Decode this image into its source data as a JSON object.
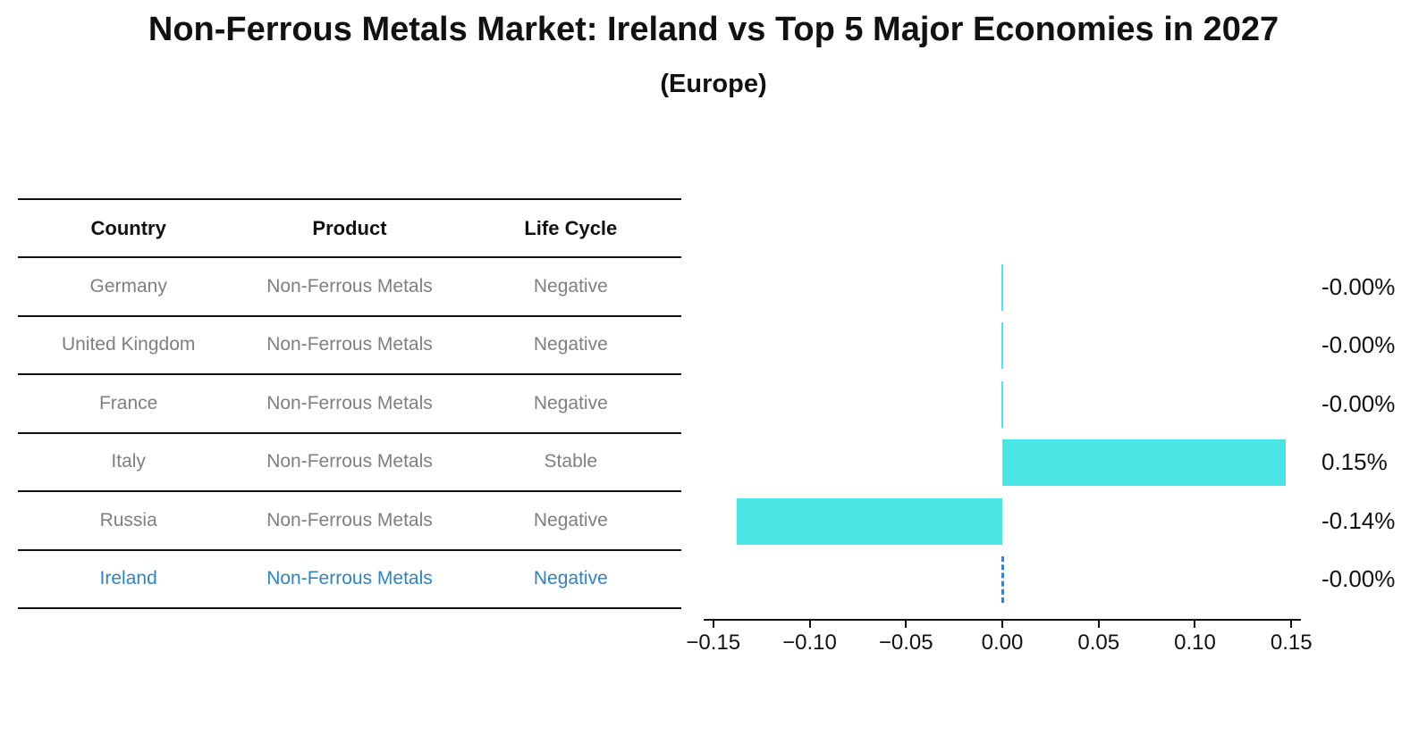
{
  "title": "Non-Ferrous Metals Market: Ireland vs Top 5 Major Economies in 2027",
  "subtitle": "(Europe)",
  "table": {
    "headers": [
      "Country",
      "Product",
      "Life Cycle"
    ],
    "rows": [
      {
        "country": "Germany",
        "product": "Non-Ferrous Metals",
        "life_cycle": "Negative",
        "highlight": false
      },
      {
        "country": "United Kingdom",
        "product": "Non-Ferrous Metals",
        "life_cycle": "Negative",
        "highlight": false
      },
      {
        "country": "France",
        "product": "Non-Ferrous Metals",
        "life_cycle": "Negative",
        "highlight": false
      },
      {
        "country": "Italy",
        "product": "Non-Ferrous Metals",
        "life_cycle": "Stable",
        "highlight": false
      },
      {
        "country": "Russia",
        "product": "Non-Ferrous Metals",
        "life_cycle": "Negative",
        "highlight": false
      },
      {
        "country": "Ireland",
        "product": "Non-Ferrous Metals",
        "life_cycle": "Negative",
        "highlight": true
      }
    ]
  },
  "chart_data": {
    "type": "bar",
    "orientation": "horizontal",
    "title": "Non-Ferrous Metals Market: Ireland vs Top 5 Major Economies in 2027 (Europe)",
    "categories": [
      "Germany",
      "United Kingdom",
      "France",
      "Italy",
      "Russia",
      "Ireland"
    ],
    "values": [
      -0.0,
      -0.0,
      -0.0,
      0.147,
      -0.138,
      -0.0
    ],
    "value_labels": [
      "-0.00%",
      "-0.00%",
      "-0.00%",
      "0.15%",
      "-0.14%",
      "-0.00%"
    ],
    "xlim": [
      -0.155,
      0.155
    ],
    "x_ticks": [
      "−0.15",
      "−0.10",
      "−0.05",
      "0.00",
      "0.05",
      "0.10",
      "0.15"
    ],
    "x_tick_values": [
      -0.15,
      -0.1,
      -0.05,
      0.0,
      0.05,
      0.1,
      0.15
    ],
    "grid": false,
    "legend": false,
    "highlight_index": 5,
    "bar_color": "#4ae4e4",
    "highlight_edge_color": "#3f7fbf",
    "highlight_text_color": "#3182bd"
  }
}
